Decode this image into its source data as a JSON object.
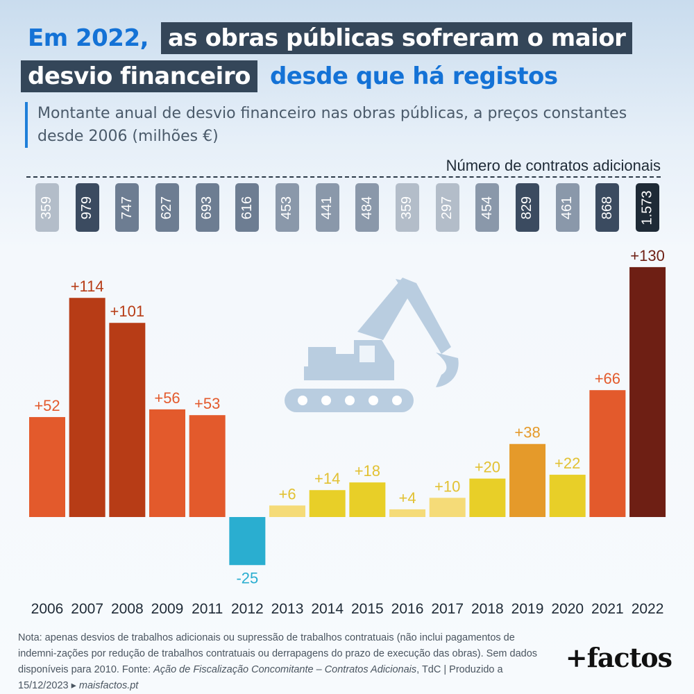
{
  "title": {
    "line1_highlight": "Em 2022,",
    "line1_rest": "as obras públicas sofreram o maior",
    "line2_dark": "desvio financeiro",
    "line2_highlight": "desde que há registos"
  },
  "subtitle": "Montante anual de desvio financeiro nas obras públicas, a preços constantes desde 2006 (milhões €)",
  "contracts_label": "Número de contratos adicionais",
  "chart_data": {
    "type": "bar",
    "categories": [
      "2006",
      "2007",
      "2008",
      "2009",
      "2011",
      "2012",
      "2013",
      "2014",
      "2015",
      "2016",
      "2017",
      "2018",
      "2019",
      "2020",
      "2021",
      "2022"
    ],
    "values": [
      52,
      114,
      101,
      56,
      53,
      -25,
      6,
      14,
      18,
      4,
      10,
      20,
      38,
      22,
      66,
      130
    ],
    "value_labels": [
      "+52",
      "+114",
      "+101",
      "+56",
      "+53",
      "-25",
      "+6",
      "+14",
      "+18",
      "+4",
      "+10",
      "+20",
      "+38",
      "+22",
      "+66",
      "+130"
    ],
    "bar_colors": [
      "#e35a2c",
      "#b73c16",
      "#b73c16",
      "#e35a2c",
      "#e35a2c",
      "#2aaed0",
      "#f5db78",
      "#e8cf28",
      "#e8cf28",
      "#f5db78",
      "#f5db78",
      "#e8cf28",
      "#e59a2a",
      "#e8cf28",
      "#e35a2c",
      "#6e1f14"
    ],
    "label_colors": [
      "#e35a2c",
      "#b73c16",
      "#b73c16",
      "#e35a2c",
      "#e35a2c",
      "#2aaed0",
      "#e2c132",
      "#e2c132",
      "#e2c132",
      "#e2c132",
      "#e2c132",
      "#e2c132",
      "#e59a2a",
      "#e2c132",
      "#e35a2c",
      "#6e1f14"
    ],
    "contracts": [
      "359",
      "979",
      "747",
      "627",
      "693",
      "616",
      "453",
      "441",
      "484",
      "359",
      "297",
      "454",
      "829",
      "461",
      "868",
      "1.573"
    ],
    "contract_colors": [
      "#b3bdc9",
      "#3b4b60",
      "#6d7d92",
      "#6d7d92",
      "#6d7d92",
      "#6d7d92",
      "#8a98aa",
      "#8a98aa",
      "#8a98aa",
      "#b3bdc9",
      "#b3bdc9",
      "#8a98aa",
      "#3b4b60",
      "#8a98aa",
      "#3b4b60",
      "#1e2a36"
    ],
    "ylim": [
      -25,
      130
    ]
  },
  "icon": "excavator-icon",
  "note": {
    "prefix": "Nota: apenas desvios de trabalhos adicionais ou supressão de trabalhos contratuais (não inclui pagamentos de indemni-zações por redução de trabalhos contratuais ou derrapagens do prazo de execução das obras). Sem dados disponíveis para 2010. Fonte: ",
    "source_italic": "Ação de Fiscalização Concomitante – Contratos Adicionais",
    "middle": ", TdC | Produzido a 15/12/2023 ▸ ",
    "site_italic": "maisfactos.pt"
  },
  "logo": "+factos"
}
